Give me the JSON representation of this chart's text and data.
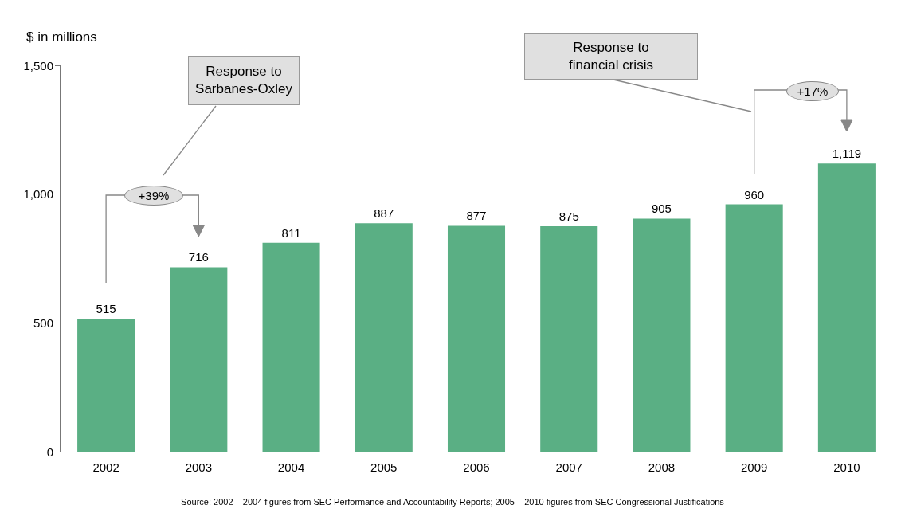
{
  "chart_data": {
    "type": "bar",
    "ylabel": "$ in millions",
    "categories": [
      "2002",
      "2003",
      "2004",
      "2005",
      "2006",
      "2007",
      "2008",
      "2009",
      "2010"
    ],
    "values": [
      515,
      716,
      811,
      887,
      877,
      875,
      905,
      960,
      1119
    ],
    "value_labels": [
      "515",
      "716",
      "811",
      "887",
      "877",
      "875",
      "905",
      "960",
      "1,119"
    ],
    "color": "#5aaf84",
    "ylim": [
      0,
      1500
    ],
    "yticks": [
      0,
      500,
      {
        "value": 1000,
        "label": "1,000"
      },
      {
        "value": 1500,
        "label": "1,500"
      }
    ],
    "grid": false,
    "annotations": [
      "Response to Sarbanes-Oxley",
      "+39%",
      "Response to financial crisis",
      "+17%",
      "Source: 2002 – 2004 figures from SEC Performance and Accountability Reports; 2005 – 2010 figures from SEC Congressional Justifications"
    ]
  }
}
